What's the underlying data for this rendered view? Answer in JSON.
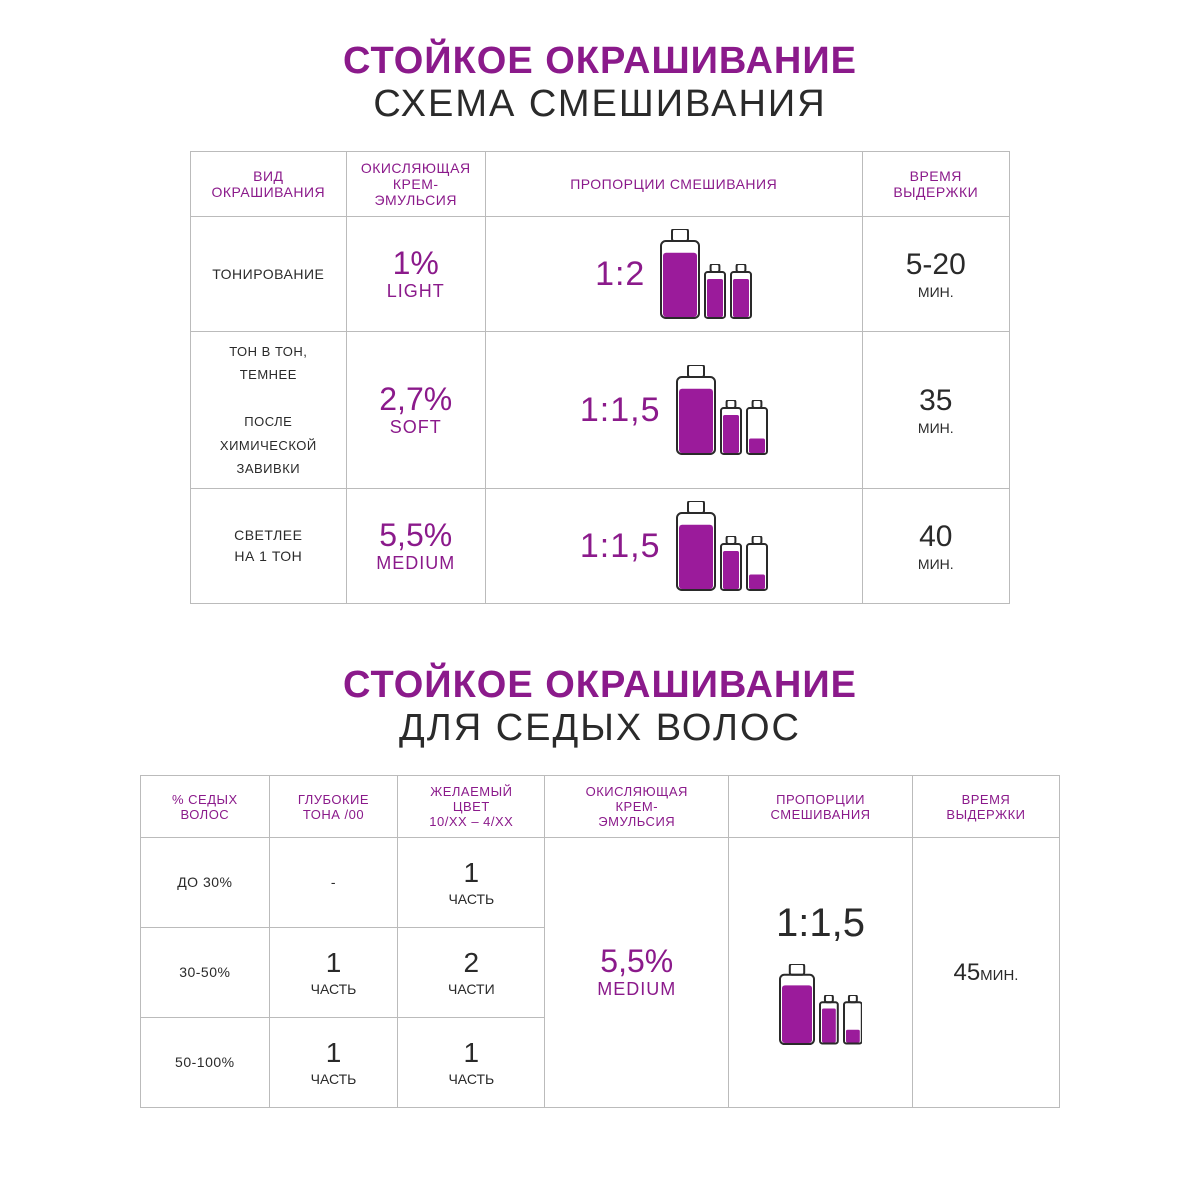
{
  "colors": {
    "purple": "#8b1a8b",
    "text": "#2a2a2a",
    "border": "#bbbbbb",
    "fill": "#9b1b9b"
  },
  "section1": {
    "title1": "СТОЙКОЕ ОКРАШИВАНИЕ",
    "title2": "СХЕМА СМЕШИВАНИЯ",
    "headers": [
      "ВИД\nОКРАШИВАНИЯ",
      "ОКИСЛЯЮЩАЯ\nКРЕМ-\nЭМУЛЬСИЯ",
      "ПРОПОРЦИИ СМЕШИВАНИЯ",
      "ВРЕМЯ\nВЫДЕРЖКИ"
    ],
    "col_widths_pct": [
      19,
      17,
      46,
      18
    ],
    "rows": [
      {
        "type": "ТОНИРОВАНИЕ",
        "percent": "1%",
        "percent_label": "LIGHT",
        "ratio": "1:2",
        "bottle_fills": [
          0.85,
          0.85,
          0.85
        ],
        "time": "5-20",
        "time_unit": "МИН."
      },
      {
        "type": "ТОН В ТОН,\nТЕМНЕЕ\n\nПОСЛЕ\nХИМИЧЕСКОЙ\nЗАВИВКИ",
        "percent": "2,7%",
        "percent_label": "SOFT",
        "ratio": "1:1,5",
        "bottle_fills": [
          0.85,
          0.85,
          0.35
        ],
        "time": "35",
        "time_unit": "МИН."
      },
      {
        "type": "СВЕТЛЕЕ\nНА 1 ТОН",
        "percent": "5,5%",
        "percent_label": "MEDIUM",
        "ratio": "1:1,5",
        "bottle_fills": [
          0.85,
          0.85,
          0.35
        ],
        "time": "40",
        "time_unit": "МИН."
      }
    ]
  },
  "section2": {
    "title1": "СТОЙКОЕ ОКРАШИВАНИЕ",
    "title2": "ДЛЯ СЕДЫХ ВОЛОС",
    "headers": [
      "% СЕДЫХ\nВОЛОС",
      "ГЛУБОКИЕ\nТОНА /00",
      "ЖЕЛАЕМЫЙ\nЦВЕТ\n10/XX – 4/XX",
      "ОКИСЛЯЮЩАЯ\nКРЕМ-\nЭМУЛЬСИЯ",
      "ПРОПОРЦИИ\nСМЕШИВАНИЯ",
      "ВРЕМЯ\nВЫДЕРЖКИ"
    ],
    "col_widths_pct": [
      14,
      14,
      16,
      20,
      20,
      16
    ],
    "rows": [
      {
        "gray": "ДО 30%",
        "deep": "-",
        "deep_label": "",
        "desired": "1",
        "desired_label": "ЧАСТЬ"
      },
      {
        "gray": "30-50%",
        "deep": "1",
        "deep_label": "ЧАСТЬ",
        "desired": "2",
        "desired_label": "ЧАСТИ"
      },
      {
        "gray": "50-100%",
        "deep": "1",
        "deep_label": "ЧАСТЬ",
        "desired": "1",
        "desired_label": "ЧАСТЬ"
      }
    ],
    "merged": {
      "percent": "5,5%",
      "percent_label": "MEDIUM",
      "ratio": "1:1,5",
      "bottle_fills": [
        0.85,
        0.85,
        0.35
      ],
      "time": "45",
      "time_unit": "МИН."
    }
  }
}
